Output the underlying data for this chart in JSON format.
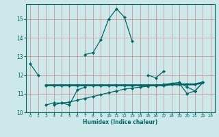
{
  "xlabel": "Humidex (Indice chaleur)",
  "bg_color": "#cce8e8",
  "line_color": "#006666",
  "x_values": [
    0,
    1,
    2,
    3,
    4,
    5,
    6,
    7,
    8,
    9,
    10,
    11,
    12,
    13,
    14,
    15,
    16,
    17,
    18,
    19,
    20,
    21,
    22,
    23
  ],
  "curve1": [
    12.6,
    12.0,
    null,
    null,
    null,
    null,
    null,
    13.1,
    13.2,
    13.9,
    15.0,
    15.55,
    15.1,
    13.8,
    null,
    12.0,
    11.85,
    12.2,
    null,
    11.55,
    11.0,
    11.15,
    11.6,
    null
  ],
  "curve1b": [
    null,
    null,
    null,
    10.4,
    10.5,
    10.4,
    11.2,
    11.35,
    null,
    null,
    null,
    null,
    null,
    null,
    null,
    null,
    null,
    null,
    null,
    null,
    null,
    null,
    null,
    null
  ],
  "curve2": [
    null,
    null,
    11.45,
    11.45,
    11.45,
    11.45,
    11.45,
    11.45,
    11.45,
    11.45,
    11.45,
    11.45,
    11.45,
    11.45,
    11.45,
    11.45,
    11.45,
    11.45,
    11.5,
    11.5,
    11.5,
    11.5,
    11.6,
    null
  ],
  "curve3": [
    null,
    null,
    10.4,
    10.5,
    10.5,
    10.55,
    10.65,
    10.75,
    10.85,
    10.95,
    11.05,
    11.15,
    11.25,
    11.3,
    11.35,
    11.4,
    11.45,
    11.5,
    11.55,
    11.6,
    11.35,
    11.15,
    11.6,
    null
  ],
  "xlim": [
    -0.5,
    23.5
  ],
  "ylim": [
    10.0,
    15.8
  ],
  "yticks": [
    10,
    11,
    12,
    13,
    14,
    15
  ],
  "xticks": [
    0,
    1,
    2,
    3,
    4,
    5,
    6,
    7,
    8,
    9,
    10,
    11,
    12,
    13,
    14,
    15,
    16,
    17,
    18,
    19,
    20,
    21,
    22,
    23
  ]
}
